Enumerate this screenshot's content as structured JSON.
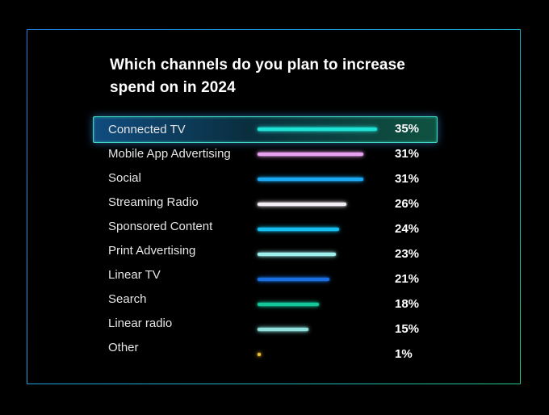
{
  "chart_data": {
    "type": "bar",
    "orientation": "horizontal",
    "title": "Which channels do you plan to increase spend on in 2024",
    "title_lines": [
      "Which channels do you plan to increase",
      "spend on in 2024"
    ],
    "categories": [
      "Connected TV",
      "Mobile App Advertising",
      "Social",
      "Streaming Radio",
      "Sponsored Content",
      "Print Advertising",
      "Linear TV",
      "Search",
      "Linear radio",
      "Other"
    ],
    "values": [
      35,
      31,
      31,
      26,
      24,
      23,
      21,
      18,
      15,
      1
    ],
    "value_labels": [
      "35%",
      "31%",
      "31%",
      "26%",
      "24%",
      "23%",
      "21%",
      "18%",
      "15%",
      "1%"
    ],
    "unit": "%",
    "xlim": [
      0,
      35
    ],
    "highlighted_category": "Connected TV",
    "bar_colors": [
      "#1fe3d6",
      "#e8a0f0",
      "#1aa9f2",
      "#f2ecf4",
      "#16bff0",
      "#9df0ee",
      "#1a6fe0",
      "#14c79a",
      "#8fe0dc",
      "#f2c230"
    ],
    "grid": false,
    "legend": "none",
    "background": "#000000"
  }
}
